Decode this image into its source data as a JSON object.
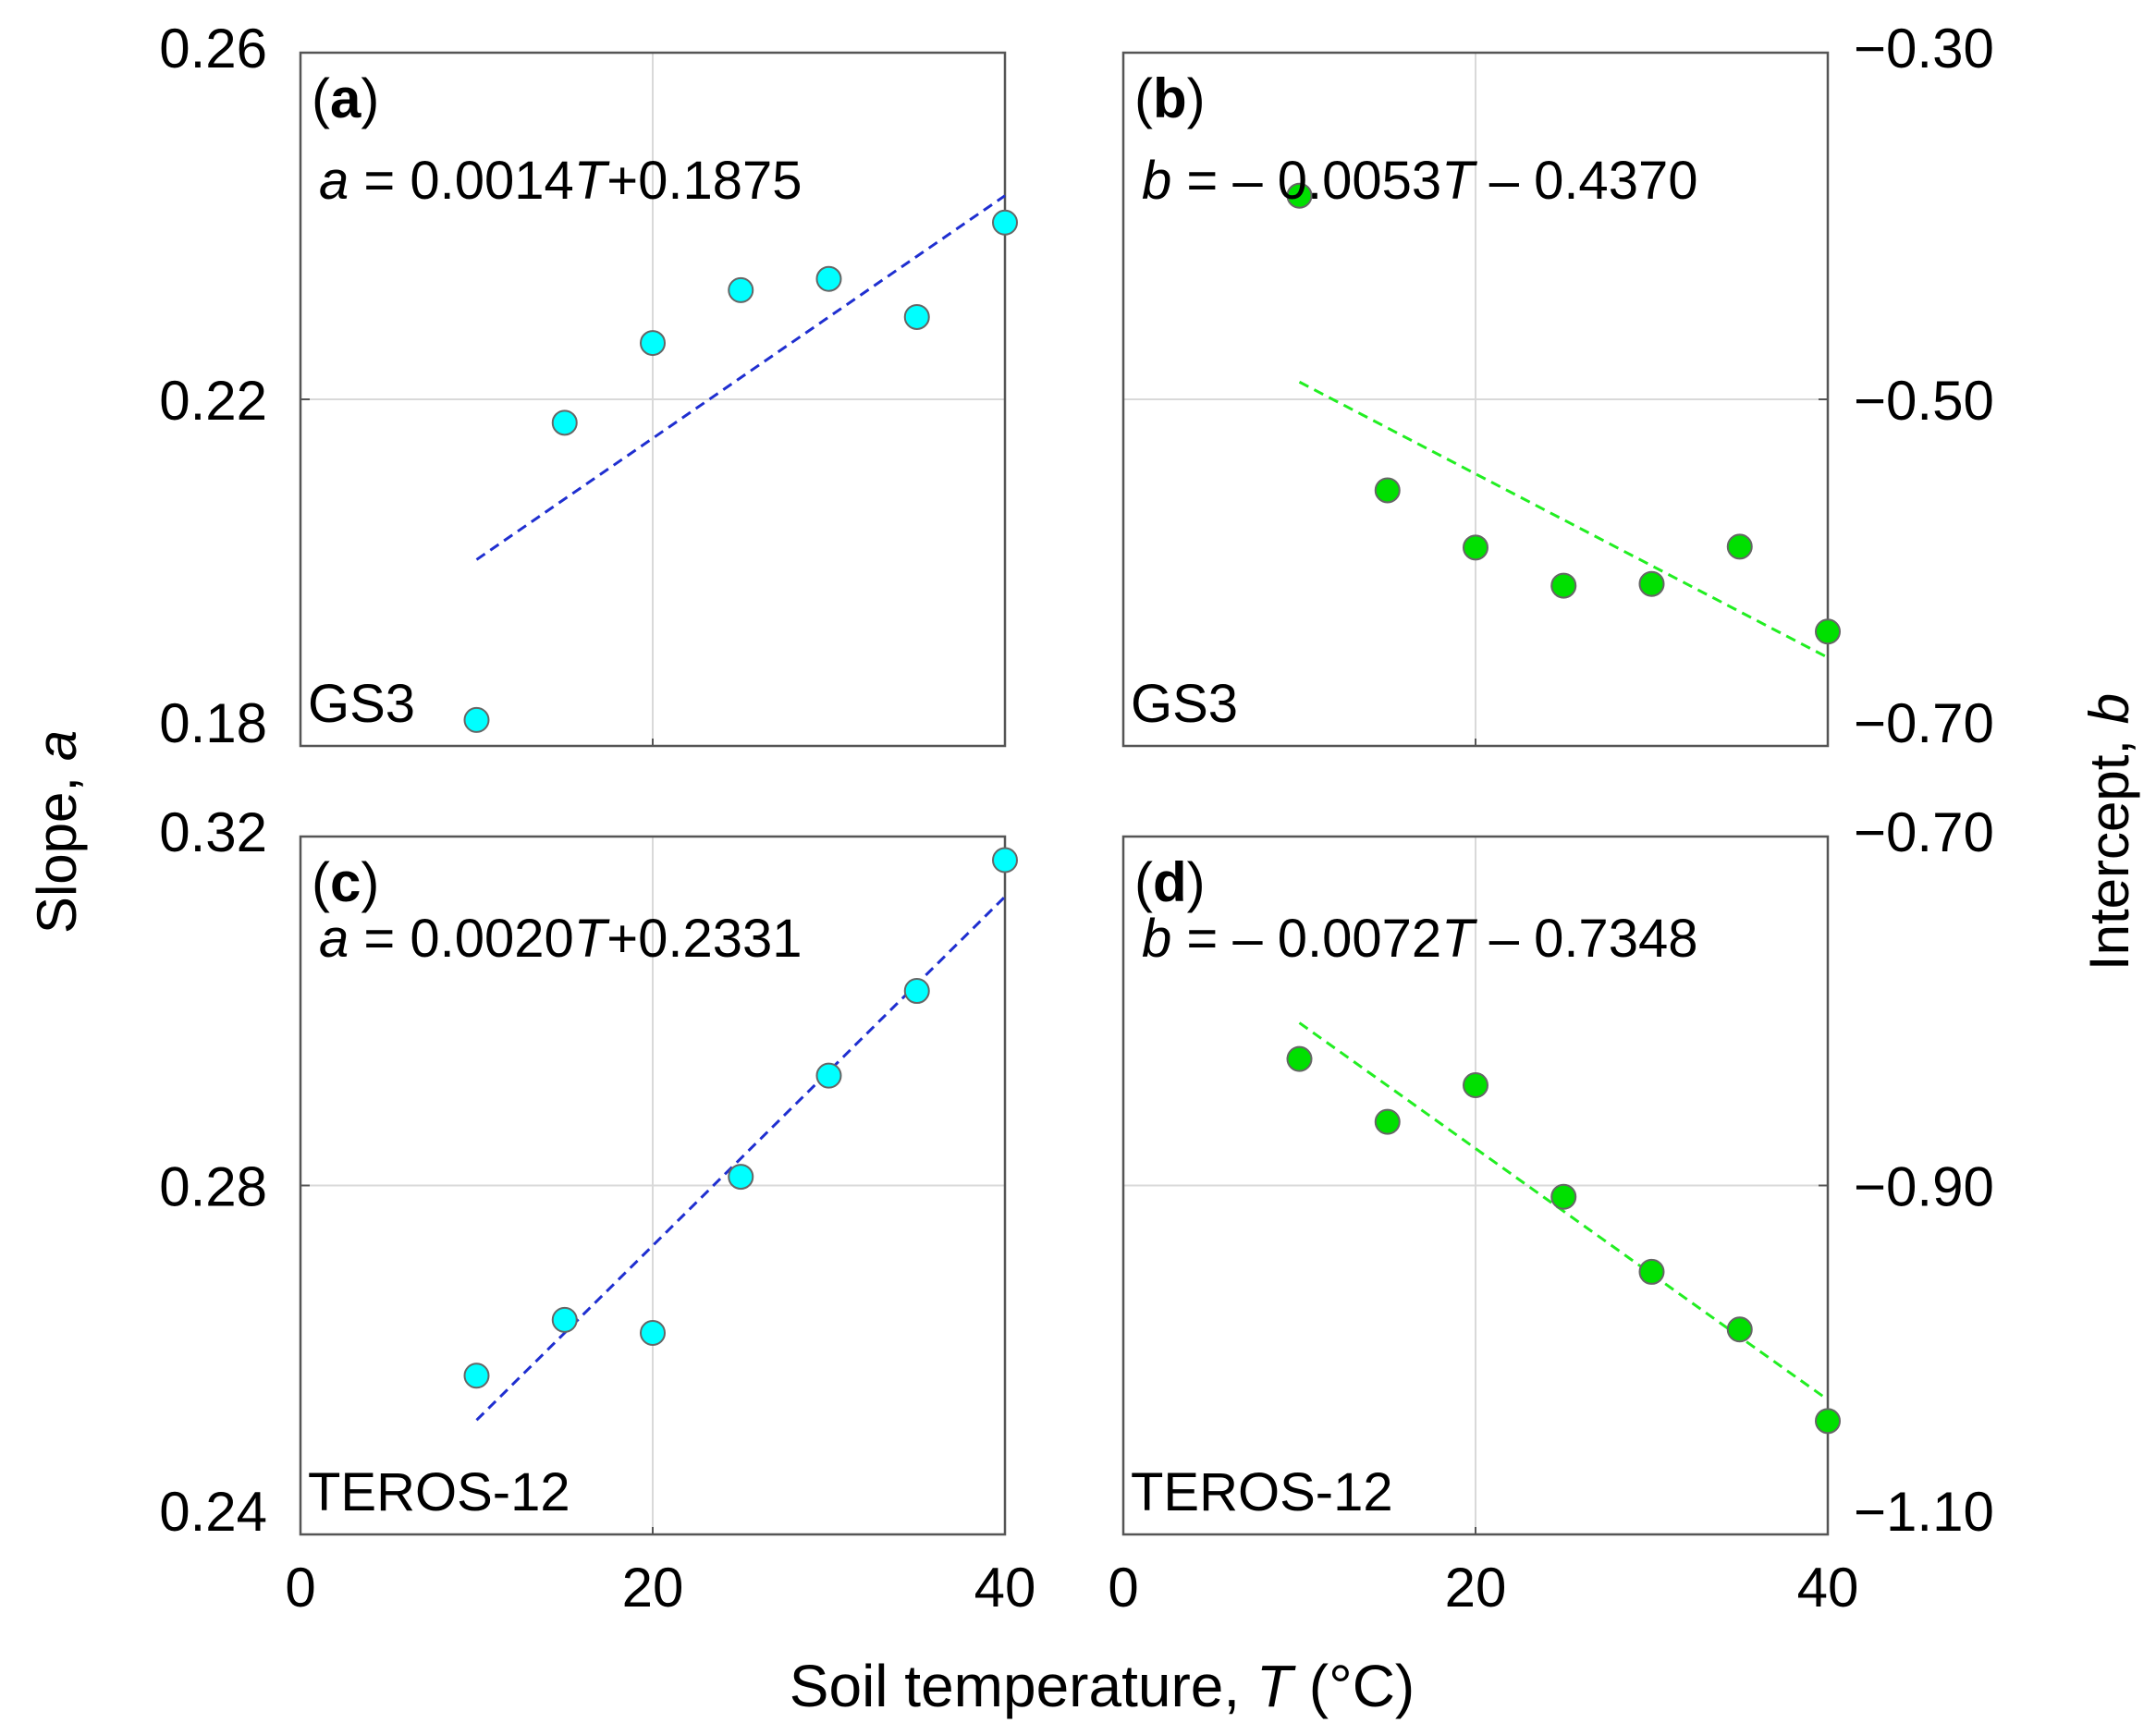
{
  "figure": {
    "ylabel_left_prefix": "Slope, ",
    "ylabel_left_var": "a",
    "ylabel_right_prefix": "Intercept, ",
    "ylabel_right_var": "b",
    "xlabel_prefix": "Soil temperature, ",
    "xlabel_var": "T",
    "xlabel_suffix": " (°C)"
  },
  "colors": {
    "cyan_marker": "#00ffff",
    "green_marker": "#00e000",
    "blue_fit": "#1f2fd0",
    "green_fit": "#22ee22",
    "marker_edge": "#666666",
    "grid": "#d9d9d9"
  },
  "chart_data": [
    {
      "id": "a",
      "type": "scatter",
      "panel_label": "a",
      "sensor": "GS3",
      "equation": {
        "var": "a",
        "eq": " = 0.0014",
        "T": "T",
        "rest": "+0.1875"
      },
      "x": [
        10,
        15,
        20,
        25,
        30,
        35,
        40
      ],
      "y": [
        0.183,
        0.2173,
        0.2265,
        0.2326,
        0.2339,
        0.2295,
        0.2404
      ],
      "fit": {
        "slope": 0.0014,
        "intercept": 0.1875,
        "x_range": [
          10,
          40
        ]
      },
      "xlim": [
        0,
        40
      ],
      "ylim": [
        0.18,
        0.26
      ],
      "yticks": [
        0.18,
        0.22,
        0.26
      ],
      "ytick_labels": [
        "0.18",
        "0.22",
        "0.26"
      ],
      "xticks": [
        0,
        20,
        40
      ],
      "xtick_labels": [],
      "ytick_side": "left",
      "marker_color": "cyan",
      "fit_color": "blue"
    },
    {
      "id": "b",
      "type": "scatter",
      "panel_label": "b",
      "sensor": "GS3",
      "equation": {
        "var": "b",
        "eq": " = – 0.0053",
        "T": "T",
        "rest": " – 0.4370"
      },
      "x": [
        10,
        15,
        20,
        25,
        30,
        35,
        40
      ],
      "y": [
        -0.3825,
        -0.5525,
        -0.5855,
        -0.6075,
        -0.6065,
        -0.585,
        -0.634
      ],
      "fit": {
        "slope": -0.0053,
        "intercept": -0.437,
        "x_range": [
          10,
          40
        ]
      },
      "xlim": [
        0,
        40
      ],
      "ylim": [
        -0.7,
        -0.3
      ],
      "yticks": [
        -0.7,
        -0.5,
        -0.3
      ],
      "ytick_labels": [
        "−0.70",
        "−0.50",
        "−0.30"
      ],
      "xticks": [
        0,
        20,
        40
      ],
      "xtick_labels": [],
      "ytick_side": "right",
      "marker_color": "green",
      "fit_color": "green"
    },
    {
      "id": "c",
      "type": "scatter",
      "panel_label": "c",
      "sensor": "TEROS-12",
      "equation": {
        "var": "a",
        "eq": " = 0.0020",
        "T": "T",
        "rest": "+0.2331"
      },
      "x": [
        10,
        15,
        20,
        25,
        30,
        35,
        40
      ],
      "y": [
        0.2582,
        0.2646,
        0.2631,
        0.281,
        0.2926,
        0.3023,
        0.3173
      ],
      "fit": {
        "slope": 0.002,
        "intercept": 0.2331,
        "x_range": [
          10,
          40
        ]
      },
      "xlim": [
        0,
        40
      ],
      "ylim": [
        0.24,
        0.32
      ],
      "yticks": [
        0.24,
        0.28,
        0.32
      ],
      "ytick_labels": [
        "0.24",
        "0.28",
        "0.32"
      ],
      "xticks": [
        0,
        20,
        40
      ],
      "xtick_labels": [
        "0",
        "20",
        "40"
      ],
      "ytick_side": "left",
      "marker_color": "cyan",
      "fit_color": "blue"
    },
    {
      "id": "d",
      "type": "scatter",
      "panel_label": "d",
      "sensor": "TEROS-12",
      "equation": {
        "var": "b",
        "eq": " = – 0.0072",
        "T": "T",
        "rest": " – 0.7348"
      },
      "x": [
        10,
        15,
        20,
        25,
        30,
        35,
        40
      ],
      "y": [
        -0.8275,
        -0.8635,
        -0.8425,
        -0.9065,
        -0.9495,
        -0.9825,
        -1.035
      ],
      "fit": {
        "slope": -0.0072,
        "intercept": -0.7348,
        "x_range": [
          10,
          40
        ]
      },
      "xlim": [
        0,
        40
      ],
      "ylim": [
        -1.1,
        -0.7
      ],
      "yticks": [
        -1.1,
        -0.9,
        -0.7
      ],
      "ytick_labels": [
        "−1.10",
        "−0.90",
        "−0.70"
      ],
      "xticks": [
        0,
        20,
        40
      ],
      "xtick_labels": [
        "0",
        "20",
        "40"
      ],
      "ytick_side": "right",
      "marker_color": "green",
      "fit_color": "green"
    }
  ]
}
